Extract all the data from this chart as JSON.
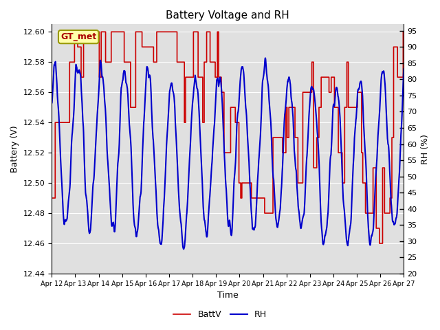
{
  "title": "Battery Voltage and RH",
  "xlabel": "Time",
  "ylabel_left": "Battery (V)",
  "ylabel_right": "RH (%)",
  "ylim_left": [
    12.44,
    12.605
  ],
  "ylim_right": [
    20,
    97
  ],
  "yticks_left": [
    12.44,
    12.46,
    12.48,
    12.5,
    12.52,
    12.54,
    12.56,
    12.58,
    12.6
  ],
  "yticks_right": [
    20,
    25,
    30,
    35,
    40,
    45,
    50,
    55,
    60,
    65,
    70,
    75,
    80,
    85,
    90,
    95
  ],
  "xtick_labels": [
    "Apr 12",
    "Apr 13",
    "Apr 14",
    "Apr 15",
    "Apr 16",
    "Apr 17",
    "Apr 18",
    "Apr 19",
    "Apr 20",
    "Apr 21",
    "Apr 22",
    "Apr 23",
    "Apr 24",
    "Apr 25",
    "Apr 26",
    "Apr 27"
  ],
  "color_batt": "#cc0000",
  "color_rh": "#0000cc",
  "label_batt": "BattV",
  "label_rh": "RH",
  "annotation_text": "GT_met",
  "bg_color": "#e0e0e0",
  "fig_bg": "#ffffff",
  "linewidth_batt": 1.2,
  "linewidth_rh": 1.5,
  "title_fontsize": 11,
  "axis_fontsize": 9,
  "tick_fontsize": 8
}
